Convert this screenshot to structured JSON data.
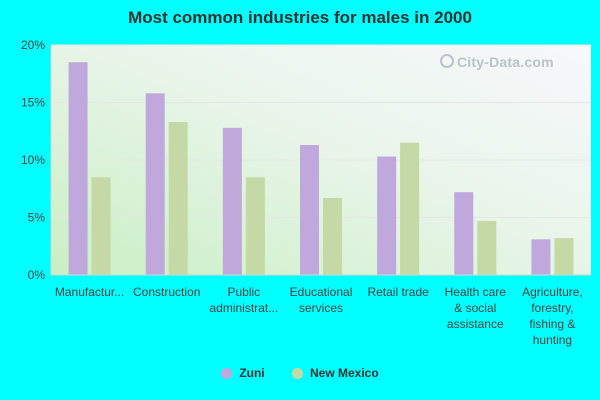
{
  "chart_data": {
    "type": "bar",
    "title": "Most common industries for males in 2000",
    "categories": [
      [
        "Manufactur..."
      ],
      [
        "Construction"
      ],
      [
        "Public",
        "administrat..."
      ],
      [
        "Educational",
        "services"
      ],
      [
        "Retail trade"
      ],
      [
        "Health care",
        "& social",
        "assistance"
      ],
      [
        "Agriculture,",
        "forestry,",
        "fishing &",
        "hunting"
      ]
    ],
    "series": [
      {
        "name": "Zuni",
        "color": "#c0a8dc",
        "values": [
          18.5,
          15.8,
          12.8,
          11.3,
          10.3,
          7.2,
          3.1
        ]
      },
      {
        "name": "New Mexico",
        "color": "#c4d9a6",
        "values": [
          8.5,
          13.3,
          8.5,
          6.7,
          11.5,
          4.7,
          3.2
        ]
      }
    ],
    "yticks": [
      "0%",
      "5%",
      "10%",
      "15%",
      "20%"
    ],
    "ylim": [
      0,
      20
    ],
    "grid": true,
    "legend_position": "bottom"
  },
  "watermark": "City-Data.com"
}
